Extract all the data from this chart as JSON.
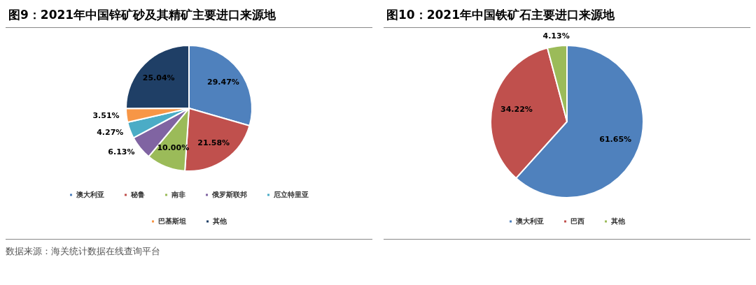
{
  "chart_data": [
    {
      "type": "pie",
      "title": "图9：2021年中国锌矿砂及其精矿主要进口来源地",
      "categories": [
        "澳大利亚",
        "秘鲁",
        "南非",
        "俄罗斯联邦",
        "厄立特里亚",
        "巴基斯坦",
        "其他"
      ],
      "values": [
        29.47,
        21.58,
        10.0,
        6.13,
        4.27,
        3.51,
        25.04
      ],
      "value_labels": [
        "29.47%",
        "21.58%",
        "10.00%",
        "6.13%",
        "4.27%",
        "3.51%",
        "25.04%"
      ],
      "colors": [
        "#4f81bd",
        "#c0504d",
        "#9bbb59",
        "#8064a2",
        "#4bacc6",
        "#f79646",
        "#1f3f66"
      ],
      "legend": "bottom",
      "annotations": [
        "数据来源：海关统计数据在线查询平台"
      ]
    },
    {
      "type": "pie",
      "title": "图10：2021年中国铁矿石主要进口来源地",
      "categories": [
        "澳大利亚",
        "巴西",
        "其他"
      ],
      "values": [
        61.65,
        34.22,
        4.13
      ],
      "value_labels": [
        "61.65%",
        "34.22%",
        "4.13%"
      ],
      "colors": [
        "#4f81bd",
        "#c0504d",
        "#9bbb59"
      ],
      "legend": "bottom"
    }
  ]
}
